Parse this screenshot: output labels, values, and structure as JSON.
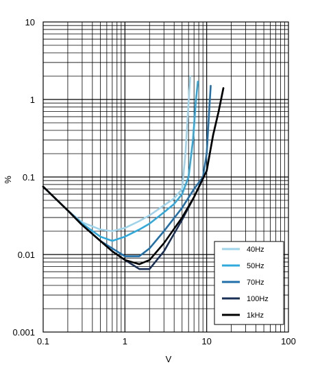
{
  "chart_data": {
    "type": "line",
    "title": "",
    "xlabel": "V",
    "ylabel": "%",
    "x_scale": "log",
    "y_scale": "log",
    "xlim": [
      0.1,
      100
    ],
    "ylim": [
      0.001,
      10
    ],
    "grid": true,
    "legend_position": "bottom-right",
    "x_tick_labels": [
      "0.1",
      "1",
      "10",
      "100"
    ],
    "y_tick_labels": [
      "0.001",
      "0.01",
      "0.1",
      "1",
      "10"
    ],
    "series": [
      {
        "name": "40Hz",
        "color": "#9fd3ea",
        "points": [
          [
            0.1,
            0.075
          ],
          [
            0.2,
            0.037
          ],
          [
            0.3,
            0.026
          ],
          [
            0.5,
            0.021
          ],
          [
            0.7,
            0.02
          ],
          [
            1.0,
            0.022
          ],
          [
            1.5,
            0.027
          ],
          [
            2.0,
            0.032
          ],
          [
            3.0,
            0.043
          ],
          [
            4.0,
            0.053
          ],
          [
            5.0,
            0.07
          ],
          [
            5.5,
            0.2
          ],
          [
            6.0,
            0.9
          ],
          [
            6.3,
            2.0
          ]
        ]
      },
      {
        "name": "50Hz",
        "color": "#2fa9dc",
        "points": [
          [
            0.1,
            0.075
          ],
          [
            0.2,
            0.037
          ],
          [
            0.3,
            0.025
          ],
          [
            0.5,
            0.017
          ],
          [
            0.7,
            0.015
          ],
          [
            1.0,
            0.017
          ],
          [
            1.5,
            0.021
          ],
          [
            2.0,
            0.025
          ],
          [
            3.0,
            0.035
          ],
          [
            4.0,
            0.045
          ],
          [
            5.0,
            0.06
          ],
          [
            6.0,
            0.1
          ],
          [
            6.8,
            0.3
          ],
          [
            7.4,
            1.0
          ],
          [
            7.8,
            1.7
          ]
        ]
      },
      {
        "name": "70Hz",
        "color": "#1f6faa",
        "points": [
          [
            0.1,
            0.075
          ],
          [
            0.2,
            0.037
          ],
          [
            0.3,
            0.024
          ],
          [
            0.5,
            0.015
          ],
          [
            0.7,
            0.012
          ],
          [
            1.0,
            0.0095
          ],
          [
            1.5,
            0.0095
          ],
          [
            2.0,
            0.012
          ],
          [
            3.0,
            0.02
          ],
          [
            5.0,
            0.04
          ],
          [
            7.0,
            0.07
          ],
          [
            9.0,
            0.1
          ],
          [
            10.0,
            0.2
          ],
          [
            10.8,
            0.8
          ],
          [
            11.2,
            1.5
          ]
        ]
      },
      {
        "name": "100Hz",
        "color": "#1a2f55",
        "points": [
          [
            0.1,
            0.075
          ],
          [
            0.2,
            0.037
          ],
          [
            0.3,
            0.024
          ],
          [
            0.5,
            0.015
          ],
          [
            0.7,
            0.011
          ],
          [
            1.0,
            0.0085
          ],
          [
            1.5,
            0.0065
          ],
          [
            2.0,
            0.0065
          ],
          [
            3.0,
            0.011
          ],
          [
            5.0,
            0.028
          ],
          [
            7.0,
            0.055
          ],
          [
            10.0,
            0.12
          ],
          [
            12.0,
            0.35
          ],
          [
            14.0,
            0.7
          ],
          [
            16.0,
            1.4
          ]
        ]
      },
      {
        "name": "1kHz",
        "color": "#000000",
        "points": [
          [
            0.1,
            0.075
          ],
          [
            0.2,
            0.037
          ],
          [
            0.3,
            0.024
          ],
          [
            0.5,
            0.015
          ],
          [
            0.7,
            0.011
          ],
          [
            1.0,
            0.0085
          ],
          [
            1.5,
            0.0075
          ],
          [
            2.0,
            0.0085
          ],
          [
            3.0,
            0.014
          ],
          [
            5.0,
            0.03
          ],
          [
            7.0,
            0.055
          ],
          [
            10.0,
            0.12
          ],
          [
            12.0,
            0.35
          ],
          [
            14.0,
            0.7
          ],
          [
            16.0,
            1.4
          ]
        ]
      }
    ]
  }
}
